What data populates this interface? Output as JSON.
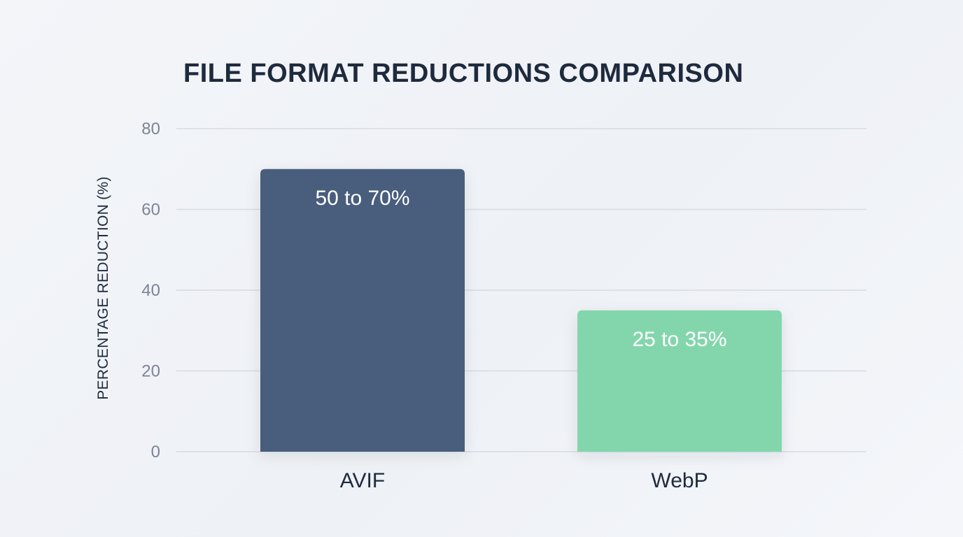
{
  "chart_data": {
    "type": "bar",
    "title": "FILE FORMAT REDUCTIONS COMPARISON",
    "xlabel": "",
    "ylabel": "PERCENTAGE REDUCTION (%)",
    "categories": [
      "AVIF",
      "WebP"
    ],
    "values": [
      70,
      35
    ],
    "data_labels": [
      "50 to 70%",
      "25 to 35%"
    ],
    "ylim": [
      0,
      80
    ],
    "yticks": [
      0,
      20,
      40,
      60,
      80
    ],
    "grid": true,
    "colors": [
      "#4a5d7c",
      "#83d6ac"
    ],
    "gridline_color": "#d5dbe4",
    "label_color": "#1e2a3d"
  }
}
